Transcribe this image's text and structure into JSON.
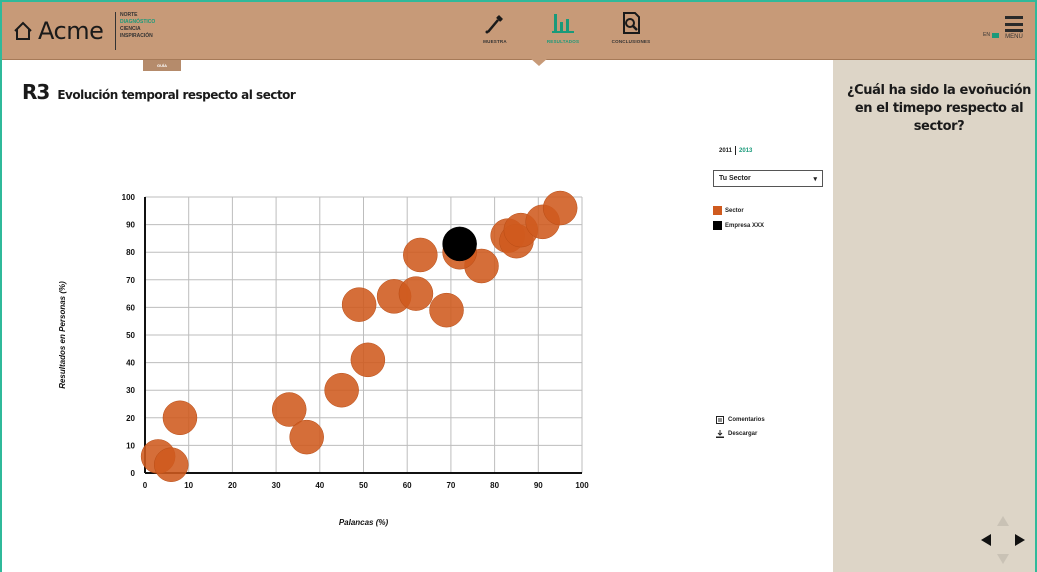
{
  "header": {
    "brand": "Acme",
    "stages": [
      "NORTE",
      "DIAGNÓSTICO",
      "CIENCIA",
      "INSPIRACIÓN"
    ],
    "active_stage": 1,
    "nav": [
      {
        "label": "MUESTRA",
        "icon": "dropper-icon",
        "active": false
      },
      {
        "label": "RESULTADOS",
        "icon": "bar-chart-icon",
        "active": true
      },
      {
        "label": "CONCLUSIONES",
        "icon": "document-search-icon",
        "active": false
      }
    ],
    "sub_tab": "GUÍA",
    "language": "EN",
    "menu_label": "MENÚ"
  },
  "page": {
    "code": "R3",
    "title": "Evolución temporal respecto al sector"
  },
  "sidebar": {
    "question": "¿Cuál ha sido la evoñución en el timepo respecto al sector?"
  },
  "controls": {
    "years": [
      "2011",
      "2013"
    ],
    "active_year": 1,
    "selected_option": "Tu Sector"
  },
  "legend": [
    {
      "label": "Sector",
      "color": "#cf5a1e"
    },
    {
      "label": "Empresa XXX",
      "color": "#000000"
    }
  ],
  "tools": {
    "comments": "Comentarios",
    "download": "Descargar"
  },
  "colors": {
    "accent": "#1a9a7a",
    "topbar": "#c79a78",
    "sidebar": "#ddd5c7",
    "sector": "#cf5a1e",
    "company": "#000000"
  },
  "chart_data": {
    "type": "scatter",
    "xlabel": "Palancas (%)",
    "ylabel": "Resultados en Personas (%)",
    "xlim": [
      0,
      100
    ],
    "ylim": [
      0,
      100
    ],
    "xticks": [
      0,
      10,
      20,
      30,
      40,
      50,
      60,
      70,
      80,
      90,
      100
    ],
    "yticks": [
      0,
      10,
      20,
      30,
      40,
      50,
      60,
      70,
      80,
      90,
      100
    ],
    "grid": true,
    "series": [
      {
        "name": "Sector",
        "points": [
          [
            3,
            6
          ],
          [
            6,
            3
          ],
          [
            8,
            20
          ],
          [
            33,
            23
          ],
          [
            37,
            13
          ],
          [
            45,
            30
          ],
          [
            51,
            41
          ],
          [
            49,
            61
          ],
          [
            57,
            64
          ],
          [
            62,
            65
          ],
          [
            63,
            79
          ],
          [
            69,
            59
          ],
          [
            77,
            75
          ],
          [
            72,
            80
          ],
          [
            83,
            86
          ],
          [
            85,
            84
          ],
          [
            86,
            88
          ],
          [
            91,
            91
          ],
          [
            95,
            96
          ]
        ]
      },
      {
        "name": "Empresa XXX",
        "points": [
          [
            72,
            83
          ]
        ]
      }
    ]
  }
}
